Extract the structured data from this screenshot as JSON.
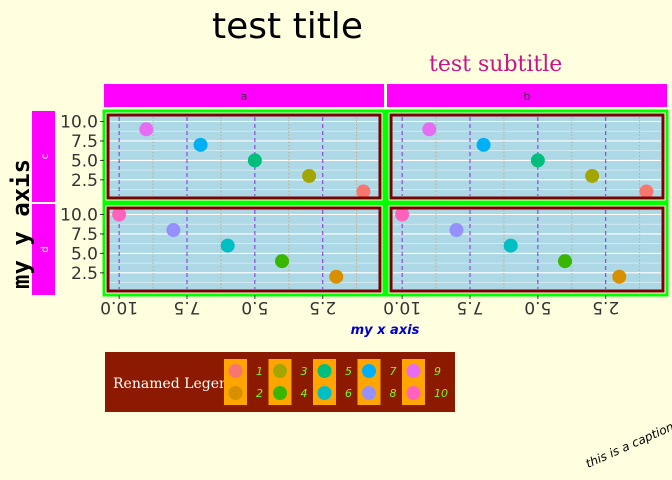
{
  "chart_data": {
    "type": "scatter",
    "title": "test title",
    "subtitle": "test subtitle",
    "xlabel": "my x axis",
    "ylabel": "my y axis",
    "caption": "this is a caption",
    "xlim": [
      0.5,
      10.3
    ],
    "ylim": [
      0.55,
      10.45
    ],
    "x_reversed": true,
    "xticks": [
      2.5,
      5.0,
      7.5,
      10.0
    ],
    "yticks": [
      2.5,
      5.0,
      7.5,
      10.0
    ],
    "xtick_labels": [
      "2.5",
      "5.0",
      "7.5",
      "10.0"
    ],
    "ytick_labels": [
      "2.5",
      "5.0",
      "7.5",
      "10.0"
    ],
    "facet_cols": [
      "a",
      "b"
    ],
    "facet_rows": [
      "c",
      "d"
    ],
    "points": [
      {
        "x": 1,
        "y": 1,
        "group": "1",
        "color": "#F8766D",
        "row": "c"
      },
      {
        "x": 3,
        "y": 3,
        "group": "3",
        "color": "#A3A500",
        "row": "c"
      },
      {
        "x": 5,
        "y": 5,
        "group": "5",
        "color": "#00BF7D",
        "row": "c"
      },
      {
        "x": 7,
        "y": 7,
        "group": "7",
        "color": "#00B0F6",
        "row": "c"
      },
      {
        "x": 9,
        "y": 9,
        "group": "9",
        "color": "#E76BF3",
        "row": "c"
      },
      {
        "x": 2,
        "y": 2,
        "group": "2",
        "color": "#D89000",
        "row": "d"
      },
      {
        "x": 4,
        "y": 4,
        "group": "4",
        "color": "#39B600",
        "row": "d"
      },
      {
        "x": 6,
        "y": 6,
        "group": "6",
        "color": "#00BFC4",
        "row": "d"
      },
      {
        "x": 8,
        "y": 8,
        "group": "8",
        "color": "#9590FF",
        "row": "d"
      },
      {
        "x": 10,
        "y": 10,
        "group": "10",
        "color": "#FF62BC",
        "row": "d"
      }
    ],
    "legend": {
      "title": "Renamed Legend",
      "position": "bottom-left",
      "entries": [
        {
          "label": "1",
          "color": "#F8766D"
        },
        {
          "label": "2",
          "color": "#D89000"
        },
        {
          "label": "3",
          "color": "#A3A500"
        },
        {
          "label": "4",
          "color": "#39B600"
        },
        {
          "label": "5",
          "color": "#00BF7D"
        },
        {
          "label": "6",
          "color": "#00BFC4"
        },
        {
          "label": "7",
          "color": "#00B0F6"
        },
        {
          "label": "8",
          "color": "#9590FF"
        },
        {
          "label": "9",
          "color": "#E76BF3"
        },
        {
          "label": "10",
          "color": "#FF62BC"
        }
      ]
    },
    "grid": true,
    "colors": {
      "page_background": "#FFFFE0",
      "panel_background": "#ADD8E6",
      "panel_border": "#7B0000",
      "panel_outline": "#00FF00",
      "strip_background": "#FF00FF",
      "major_grid_x": "#8A2BE2",
      "minor_grid_x": "#C8A878",
      "major_grid_y": "#FFFFFF",
      "legend_background": "#8B1A00",
      "legend_key_background": "#FFA500"
    }
  }
}
